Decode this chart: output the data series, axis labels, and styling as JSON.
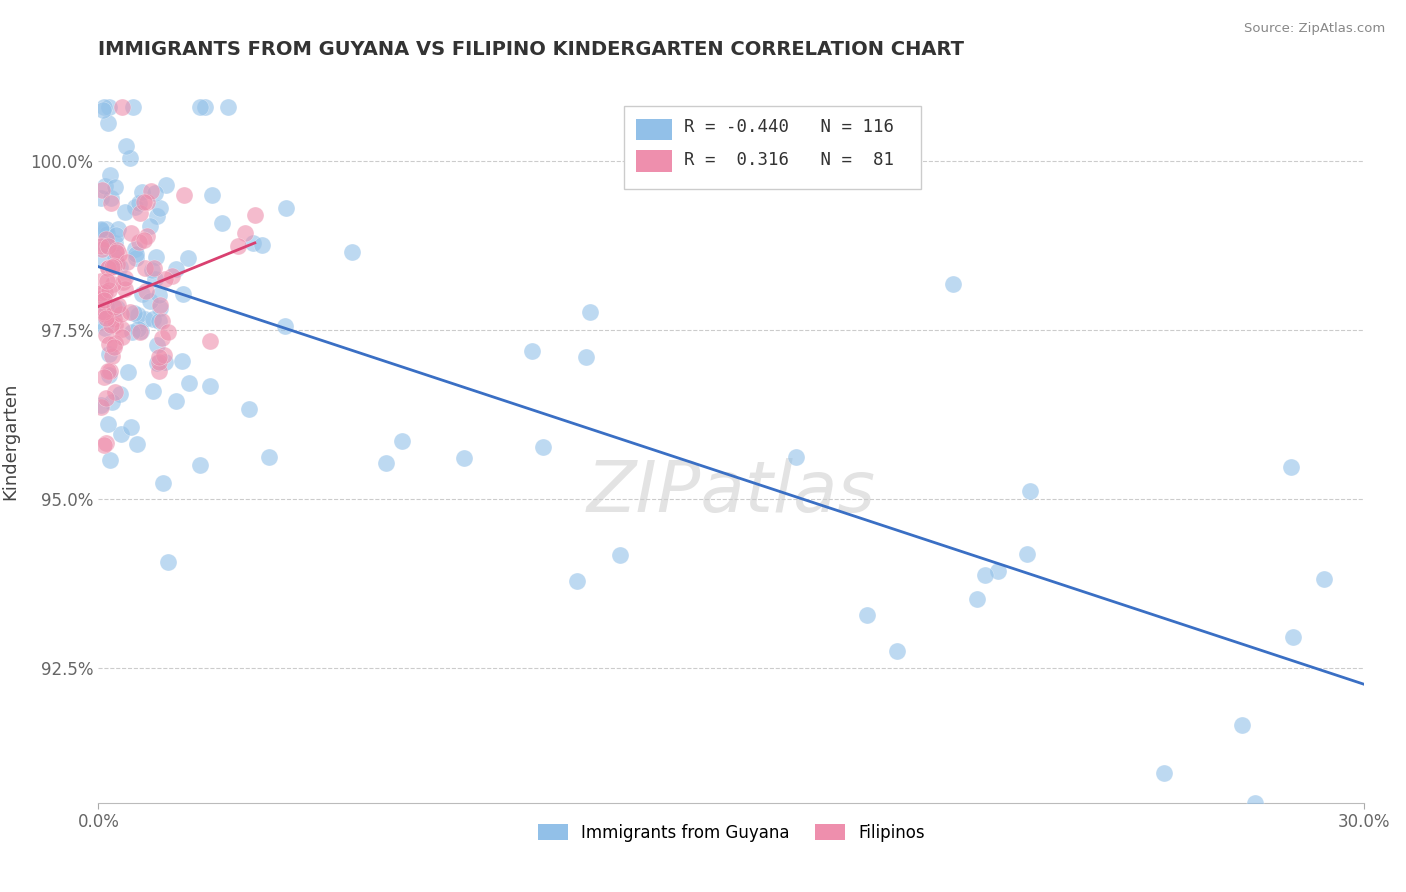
{
  "title": "IMMIGRANTS FROM GUYANA VS FILIPINO KINDERGARTEN CORRELATION CHART",
  "source": "Source: ZipAtlas.com",
  "ylabel": "Kindergarten",
  "xlim": [
    0.0,
    30.0
  ],
  "ylim": [
    90.5,
    101.2
  ],
  "ytick_vals": [
    92.5,
    95.0,
    97.5,
    100.0
  ],
  "ytick_labels": [
    "92.5%",
    "95.0%",
    "97.5%",
    "100.0%"
  ],
  "xtick_vals": [
    0.0,
    30.0
  ],
  "xtick_labels": [
    "0.0%",
    "30.0%"
  ],
  "legend_blue_R": "-0.440",
  "legend_blue_N": "116",
  "legend_pink_R": "0.316",
  "legend_pink_N": "81",
  "blue_color": "#92C0E8",
  "pink_color": "#EE8FAD",
  "blue_line_color": "#3A6FC4",
  "pink_line_color": "#D94070",
  "watermark": "ZIPatlas",
  "blue_seed": 101,
  "pink_seed": 202,
  "n_blue": 116,
  "n_pink": 81
}
